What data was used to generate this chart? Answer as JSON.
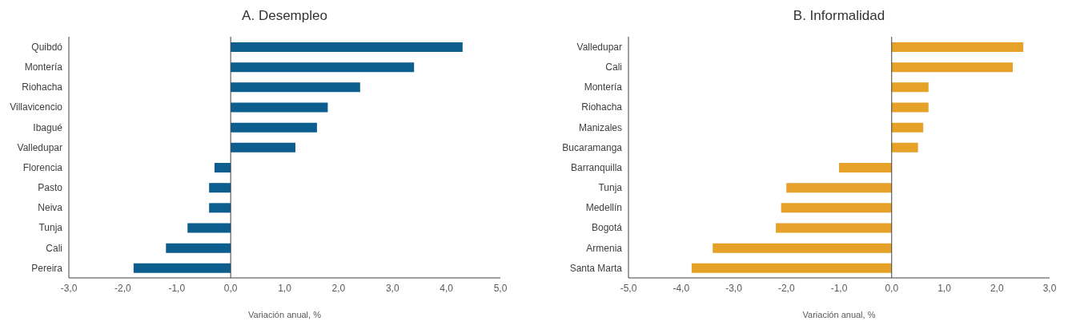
{
  "chart_data": [
    {
      "type": "bar",
      "orientation": "horizontal",
      "title": "A. Desempleo",
      "xlabel": "Variación anual, %",
      "categories": [
        "Quibdó",
        "Montería",
        "Riohacha",
        "Villavicencio",
        "Ibagué",
        "Valledupar",
        "Florencia",
        "Pasto",
        "Neiva",
        "Tunja",
        "Cali",
        "Pereira"
      ],
      "values": [
        4.3,
        3.4,
        2.4,
        1.8,
        1.6,
        1.2,
        -0.3,
        -0.4,
        -0.4,
        -0.8,
        -1.2,
        -1.8
      ],
      "color": "#0b5e8e",
      "xlim": [
        -3,
        5
      ],
      "xticks": [
        {
          "value": -3,
          "label": "-3,0"
        },
        {
          "value": -2,
          "label": "-2,0"
        },
        {
          "value": -1,
          "label": "-1,0"
        },
        {
          "value": 0,
          "label": "0,0"
        },
        {
          "value": 1,
          "label": "1,0"
        },
        {
          "value": 2,
          "label": "2,0"
        },
        {
          "value": 3,
          "label": "3,0"
        },
        {
          "value": 4,
          "label": "4,0"
        },
        {
          "value": 5,
          "label": "5,0"
        }
      ],
      "ref_lines": [
        {
          "axis": "x",
          "value": 0,
          "color": "#404040"
        }
      ],
      "grid": false,
      "legend": false
    },
    {
      "type": "bar",
      "orientation": "horizontal",
      "title": "B. Informalidad",
      "xlabel": "Variación anual, %",
      "categories": [
        "Valledupar",
        "Cali",
        "Montería",
        "Riohacha",
        "Manizales",
        "Bucaramanga",
        "Barranquilla",
        "Tunja",
        "Medellín",
        "Bogotá",
        "Armenia",
        "Santa Marta"
      ],
      "values": [
        2.5,
        2.3,
        0.7,
        0.7,
        0.6,
        0.5,
        -1.0,
        -2.0,
        -2.1,
        -2.2,
        -3.4,
        -3.8
      ],
      "color": "#e5a128",
      "xlim": [
        -5,
        3
      ],
      "xticks": [
        {
          "value": -5,
          "label": "-5,0"
        },
        {
          "value": -4,
          "label": "-4,0"
        },
        {
          "value": -3,
          "label": "-3,0"
        },
        {
          "value": -2,
          "label": "-2,0"
        },
        {
          "value": -1,
          "label": "-1,0"
        },
        {
          "value": 0,
          "label": "0,0"
        },
        {
          "value": 1,
          "label": "1,0"
        },
        {
          "value": 2,
          "label": "2,0"
        },
        {
          "value": 3,
          "label": "3,0"
        }
      ],
      "ref_lines": [
        {
          "axis": "x",
          "value": 0,
          "color": "#404040"
        }
      ],
      "grid": false,
      "legend": false
    }
  ]
}
